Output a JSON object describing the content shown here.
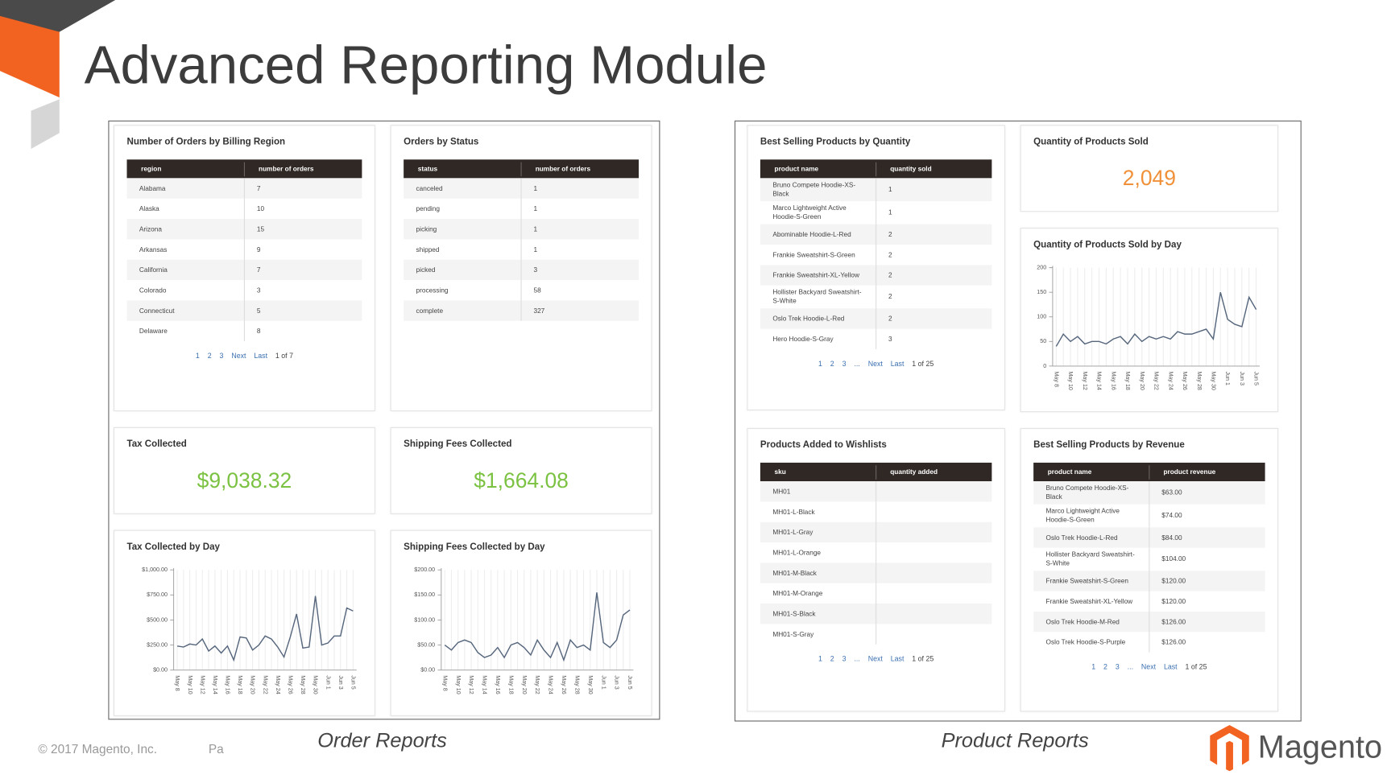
{
  "title": "Advanced Reporting Module",
  "footer": {
    "copyright": "© 2017 Magento, Inc.",
    "page": "Pa"
  },
  "captions": [
    "Order Reports",
    "Product Reports"
  ],
  "logo": "Magento",
  "widgets": [
    {
      "type": "table",
      "title": "Number of Orders by Billing Region",
      "columns": [
        "region",
        "number of orders"
      ],
      "rows": [
        [
          "Alabama",
          7
        ],
        [
          "Alaska",
          10
        ],
        [
          "Arizona",
          15
        ],
        [
          "Arkansas",
          9
        ],
        [
          "California",
          7
        ],
        [
          "Colorado",
          3
        ],
        [
          "Connecticut",
          5
        ],
        [
          "Delaware",
          8
        ]
      ],
      "pagination": [
        "1",
        "2",
        "3",
        "Next",
        "Last",
        "1 of 7"
      ]
    },
    {
      "type": "table",
      "title": "Orders by Status",
      "columns": [
        "status",
        "number of orders"
      ],
      "rows": [
        [
          "canceled",
          1
        ],
        [
          "pending",
          1
        ],
        [
          "picking",
          1
        ],
        [
          "shipped",
          1
        ],
        [
          "picked",
          3
        ],
        [
          "processing",
          58
        ],
        [
          "complete",
          327
        ]
      ]
    },
    {
      "type": "kpi",
      "title": "Tax Collected",
      "value": "$9,038.32",
      "color": "#7cc242"
    },
    {
      "type": "kpi",
      "title": "Shipping Fees Collected",
      "value": "$1,664.08",
      "color": "#7cc242"
    },
    {
      "type": "line",
      "title": "Tax Collected by Day",
      "color": "#56667c",
      "categories": [
        "May 8",
        null,
        "May 10",
        null,
        "May 12",
        null,
        "May 14",
        null,
        "May 16",
        null,
        "May 18",
        null,
        "May 20",
        null,
        "May 22",
        null,
        "May 24",
        null,
        "May 26",
        null,
        "May 28",
        null,
        "May 30",
        null,
        "Jun 1",
        null,
        "Jun 3",
        null,
        "Jun 5"
      ],
      "values": [
        240,
        230,
        260,
        250,
        310,
        190,
        240,
        170,
        240,
        100,
        330,
        320,
        200,
        250,
        340,
        310,
        230,
        130,
        330,
        560,
        220,
        230,
        740,
        250,
        270,
        340,
        340,
        620,
        590
      ],
      "ylim": [
        0,
        1000
      ],
      "yticks": [
        {
          "value": 0,
          "label": "$0.00"
        },
        {
          "value": 250,
          "label": "$250.00"
        },
        {
          "value": 500,
          "label": "$500.00"
        },
        {
          "value": 750,
          "label": "$750.00"
        },
        {
          "value": 1000,
          "label": "$1,000.00"
        }
      ]
    },
    {
      "type": "line",
      "title": "Shipping Fees Collected by Day",
      "color": "#56667c",
      "categories": [
        "May 8",
        null,
        "May 10",
        null,
        "May 12",
        null,
        "May 14",
        null,
        "May 16",
        null,
        "May 18",
        null,
        "May 20",
        null,
        "May 22",
        null,
        "May 24",
        null,
        "May 26",
        null,
        "May 28",
        null,
        "May 30",
        null,
        "Jun 1",
        null,
        "Jun 3",
        null,
        "Jun 5"
      ],
      "values": [
        50,
        40,
        55,
        60,
        55,
        35,
        25,
        30,
        45,
        25,
        50,
        55,
        45,
        30,
        60,
        40,
        25,
        55,
        20,
        60,
        45,
        50,
        40,
        155,
        55,
        45,
        60,
        110,
        120
      ],
      "ylim": [
        0,
        200
      ],
      "yticks": [
        {
          "value": 0,
          "label": "$0.00"
        },
        {
          "value": 50,
          "label": "$50.00"
        },
        {
          "value": 100,
          "label": "$100.00"
        },
        {
          "value": 150,
          "label": "$150.00"
        },
        {
          "value": 200,
          "label": "$200.00"
        }
      ]
    },
    {
      "type": "table",
      "title": "Best Selling Products by Quantity",
      "columns": [
        "product name",
        "quantity sold"
      ],
      "rows": [
        [
          "Bruno Compete Hoodie-XS-Black",
          1
        ],
        [
          "Marco Lightweight Active Hoodie-S-Green",
          1
        ],
        [
          "Abominable Hoodie-L-Red",
          2
        ],
        [
          "Frankie Sweatshirt-S-Green",
          2
        ],
        [
          "Frankie Sweatshirt-XL-Yellow",
          2
        ],
        [
          "Hollister Backyard Sweatshirt-S-White",
          2
        ],
        [
          "Oslo Trek Hoodie-L-Red",
          2
        ],
        [
          "Hero Hoodie-S-Gray",
          3
        ]
      ],
      "pagination": [
        "1",
        "2",
        "3",
        "...",
        "Next",
        "Last",
        "1 of 25"
      ]
    },
    {
      "type": "kpi",
      "title": "Quantity of Products Sold",
      "value": "2,049",
      "color": "#f0913a"
    },
    {
      "type": "line",
      "title": "Quantity of Products Sold by Day",
      "color": "#56667c",
      "categories": [
        "May 8",
        null,
        "May 10",
        null,
        "May 12",
        null,
        "May 14",
        null,
        "May 16",
        null,
        "May 18",
        null,
        "May 20",
        null,
        "May 22",
        null,
        "May 24",
        null,
        "May 26",
        null,
        "May 28",
        null,
        "May 30",
        null,
        "Jun 1",
        null,
        "Jun 3",
        null,
        "Jun 5"
      ],
      "values": [
        40,
        65,
        50,
        60,
        45,
        50,
        50,
        45,
        55,
        60,
        45,
        65,
        50,
        60,
        55,
        60,
        55,
        70,
        65,
        65,
        70,
        75,
        55,
        150,
        95,
        85,
        80,
        140,
        115
      ],
      "ylim": [
        0,
        200
      ],
      "yticks": [
        0,
        50,
        100,
        150,
        200
      ]
    },
    {
      "type": "table",
      "title": "Products Added to Wishlists",
      "columns": [
        "sku",
        "quantity added"
      ],
      "rows": [
        [
          "MH01"
        ],
        [
          "MH01-L-Black"
        ],
        [
          "MH01-L-Gray"
        ],
        [
          "MH01-L-Orange"
        ],
        [
          "MH01-M-Black"
        ],
        [
          "MH01-M-Orange"
        ],
        [
          "MH01-S-Black"
        ],
        [
          "MH01-S-Gray"
        ]
      ],
      "pagination": [
        "1",
        "2",
        "3",
        "...",
        "Next",
        "Last",
        "1 of 25"
      ]
    },
    {
      "type": "table",
      "title": "Best Selling Products by Revenue",
      "columns": [
        "product name",
        "product revenue"
      ],
      "rows": [
        [
          "Bruno Compete Hoodie-XS-Black",
          "$63.00"
        ],
        [
          "Marco Lightweight Active Hoodie-S-Green",
          "$74.00"
        ],
        [
          "Oslo Trek Hoodie-L-Red",
          "$84.00"
        ],
        [
          "Hollister Backyard Sweatshirt-S-White",
          "$104.00"
        ],
        [
          "Frankie Sweatshirt-S-Green",
          "$120.00"
        ],
        [
          "Frankie Sweatshirt-XL-Yellow",
          "$120.00"
        ],
        [
          "Oslo Trek Hoodie-M-Red",
          "$126.00"
        ],
        [
          "Oslo Trek Hoodie-S-Purple",
          "$126.00"
        ]
      ],
      "pagination": [
        "1",
        "2",
        "3",
        "...",
        "Next",
        "Last",
        "1 of 25"
      ]
    }
  ]
}
